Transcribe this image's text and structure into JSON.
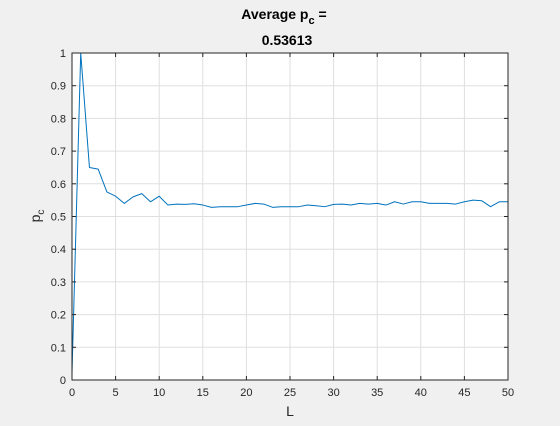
{
  "chart_data": {
    "type": "line",
    "title": {
      "line1_text": "Average p",
      "line1_subscript": "c",
      "line1_suffix": " =",
      "line2": "0.53613"
    },
    "xlabel": "L",
    "ylabel": "p",
    "ylabel_subscript": "c",
    "xlim": [
      0,
      50
    ],
    "ylim": [
      0,
      1
    ],
    "xticks": [
      0,
      5,
      10,
      15,
      20,
      25,
      30,
      35,
      40,
      45,
      50
    ],
    "yticks": [
      0,
      0.1,
      0.2,
      0.3,
      0.4,
      0.5,
      0.6,
      0.7,
      0.8,
      0.9,
      1
    ],
    "grid": true,
    "series": [
      {
        "color": "#0072bd",
        "x": [
          0,
          1,
          2,
          3,
          4,
          5,
          6,
          7,
          8,
          9,
          10,
          11,
          12,
          13,
          14,
          15,
          16,
          17,
          18,
          19,
          20,
          21,
          22,
          23,
          24,
          25,
          26,
          27,
          28,
          29,
          30,
          31,
          32,
          33,
          34,
          35,
          36,
          37,
          38,
          39,
          40,
          41,
          42,
          43,
          44,
          45,
          46,
          47,
          48,
          49,
          50
        ],
        "y": [
          0.02,
          1.0,
          0.65,
          0.645,
          0.575,
          0.562,
          0.54,
          0.56,
          0.57,
          0.545,
          0.562,
          0.535,
          0.538,
          0.537,
          0.539,
          0.535,
          0.528,
          0.53,
          0.53,
          0.53,
          0.535,
          0.54,
          0.538,
          0.528,
          0.53,
          0.53,
          0.53,
          0.535,
          0.533,
          0.53,
          0.537,
          0.538,
          0.535,
          0.54,
          0.538,
          0.54,
          0.535,
          0.545,
          0.538,
          0.545,
          0.545,
          0.54,
          0.54,
          0.54,
          0.538,
          0.545,
          0.55,
          0.548,
          0.53,
          0.545,
          0.545
        ]
      }
    ]
  }
}
